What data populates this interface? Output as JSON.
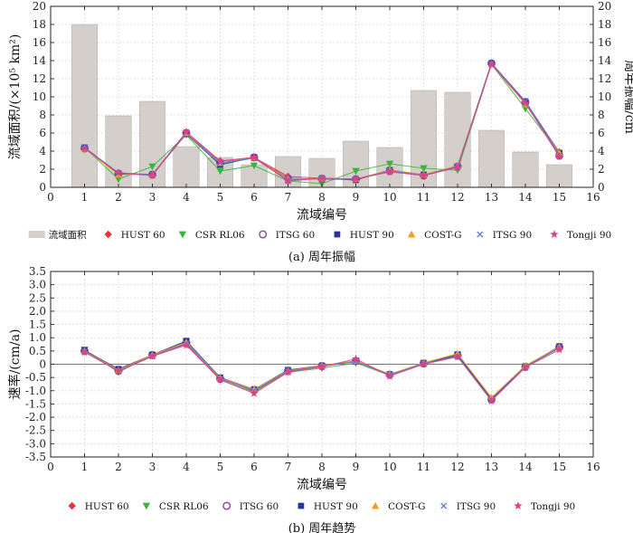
{
  "chart_data": [
    {
      "type": "bar+line",
      "caption": "(a) 周年振幅",
      "xlabel": "流域编号",
      "ylabel_left": "流域面积/(×10⁵ km²)",
      "ylabel_right": "周年振幅/cm",
      "xlim": [
        0,
        16
      ],
      "ylim_left": [
        0,
        20
      ],
      "ylim_right": [
        0,
        20
      ],
      "xticks": [
        "0",
        "1",
        "2",
        "3",
        "4",
        "5",
        "6",
        "7",
        "8",
        "9",
        "10",
        "11",
        "12",
        "13",
        "14",
        "15",
        "16"
      ],
      "yticks_left": [
        "0",
        "2",
        "4",
        "6",
        "8",
        "10",
        "12",
        "14",
        "16",
        "18",
        "20"
      ],
      "yticks_right": [
        "0",
        "2",
        "4",
        "6",
        "8",
        "10",
        "12",
        "14",
        "16",
        "18",
        "20"
      ],
      "grid": true,
      "legend_position": "bottom",
      "categories": [
        1,
        2,
        3,
        4,
        5,
        6,
        7,
        8,
        9,
        10,
        11,
        12,
        13,
        14,
        15
      ],
      "bars": {
        "name": "流域面积",
        "color": "#d4cfcb",
        "values": [
          18.0,
          7.9,
          9.5,
          4.5,
          3.3,
          2.5,
          3.4,
          3.2,
          5.1,
          4.4,
          10.7,
          10.5,
          6.3,
          3.9,
          2.5
        ]
      },
      "series": [
        {
          "name": "HUST 60",
          "color": "#e8323a",
          "marker": "diamond",
          "values": [
            4.3,
            1.6,
            1.4,
            6.1,
            2.9,
            3.3,
            1.2,
            1.0,
            0.9,
            1.9,
            1.3,
            2.3,
            13.7,
            9.3,
            3.9
          ]
        },
        {
          "name": "CSR RL06",
          "color": "#3cb43c",
          "marker": "triangle-down",
          "values": [
            4.4,
            0.9,
            2.3,
            5.8,
            1.8,
            2.4,
            0.7,
            0.4,
            1.8,
            2.6,
            2.1,
            1.9,
            13.6,
            8.7,
            3.8
          ]
        },
        {
          "name": "ITSG 60",
          "color": "#8e4ba6",
          "marker": "circle",
          "values": [
            4.3,
            1.5,
            1.4,
            6.0,
            2.7,
            3.3,
            1.0,
            0.9,
            0.9,
            1.8,
            1.3,
            2.3,
            13.7,
            9.4,
            3.5
          ]
        },
        {
          "name": "HUST 90",
          "color": "#283593",
          "marker": "square",
          "values": [
            4.4,
            1.5,
            1.4,
            5.9,
            2.5,
            3.3,
            0.8,
            1.0,
            0.8,
            1.9,
            1.4,
            2.3,
            13.7,
            9.5,
            3.8
          ]
        },
        {
          "name": "COST-G",
          "color": "#f0a020",
          "marker": "triangle-up",
          "values": [
            4.3,
            1.4,
            1.4,
            6.0,
            2.7,
            3.3,
            0.9,
            1.0,
            0.9,
            1.9,
            1.4,
            2.4,
            13.6,
            9.2,
            3.8
          ]
        },
        {
          "name": "ITSG 90",
          "color": "#5c7bd9",
          "marker": "x",
          "values": [
            4.4,
            1.6,
            1.4,
            6.1,
            2.7,
            3.2,
            0.8,
            1.0,
            0.9,
            1.8,
            1.3,
            2.3,
            13.7,
            9.5,
            3.6
          ]
        },
        {
          "name": "Tongji 90",
          "color": "#e0408a",
          "marker": "star",
          "values": [
            4.3,
            1.6,
            1.3,
            6.1,
            2.9,
            3.3,
            0.7,
            1.0,
            0.9,
            1.7,
            1.3,
            2.2,
            13.6,
            9.3,
            3.4
          ]
        }
      ]
    },
    {
      "type": "line",
      "caption": "(b) 周年趋势",
      "xlabel": "流域编号",
      "ylabel": "速率/(cm/a)",
      "xlim": [
        0,
        16
      ],
      "ylim": [
        -3.5,
        3.5
      ],
      "xticks": [
        "0",
        "1",
        "2",
        "3",
        "4",
        "5",
        "6",
        "7",
        "8",
        "9",
        "10",
        "11",
        "12",
        "13",
        "14",
        "15",
        "16"
      ],
      "yticks": [
        "-3.5",
        "-3.0",
        "-2.5",
        "-2.0",
        "-1.5",
        "-1.0",
        "-0.5",
        "0",
        "0.5",
        "1.0",
        "1.5",
        "2.0",
        "2.5",
        "3.0",
        "3.5"
      ],
      "grid": true,
      "legend_position": "bottom",
      "categories": [
        1,
        2,
        3,
        4,
        5,
        6,
        7,
        8,
        9,
        10,
        11,
        12,
        13,
        14,
        15
      ],
      "series": [
        {
          "name": "HUST 60",
          "color": "#e8323a",
          "marker": "diamond",
          "values": [
            0.5,
            -0.25,
            0.33,
            0.75,
            -0.52,
            -1.02,
            -0.27,
            -0.07,
            0.12,
            -0.4,
            0.02,
            0.33,
            -1.35,
            -0.08,
            0.62
          ]
        },
        {
          "name": "CSR RL06",
          "color": "#3cb43c",
          "marker": "triangle-down",
          "values": [
            0.55,
            -0.3,
            0.35,
            0.85,
            -0.6,
            -1.05,
            -0.3,
            -0.15,
            0.05,
            -0.42,
            0.05,
            0.35,
            -1.3,
            -0.1,
            0.62
          ]
        },
        {
          "name": "ITSG 60",
          "color": "#8e4ba6",
          "marker": "circle",
          "values": [
            0.5,
            -0.25,
            0.35,
            0.8,
            -0.55,
            -0.97,
            -0.25,
            -0.07,
            0.12,
            -0.4,
            0.03,
            0.32,
            -1.33,
            -0.1,
            0.65
          ]
        },
        {
          "name": "HUST 90",
          "color": "#283593",
          "marker": "square",
          "values": [
            0.52,
            -0.18,
            0.35,
            0.88,
            -0.5,
            -0.95,
            -0.22,
            -0.05,
            0.1,
            -0.38,
            0.03,
            0.37,
            -1.32,
            -0.08,
            0.67
          ]
        },
        {
          "name": "COST-G",
          "color": "#f0a020",
          "marker": "triangle-up",
          "values": [
            0.5,
            -0.22,
            0.35,
            0.82,
            -0.52,
            -0.95,
            -0.25,
            -0.05,
            0.12,
            -0.38,
            0.05,
            0.4,
            -1.25,
            -0.05,
            0.65
          ]
        },
        {
          "name": "ITSG 90",
          "color": "#5c7bd9",
          "marker": "x",
          "values": [
            0.48,
            -0.27,
            0.3,
            0.78,
            -0.55,
            -1.0,
            -0.27,
            -0.08,
            0.1,
            -0.4,
            0.02,
            0.3,
            -1.35,
            -0.1,
            0.62
          ]
        },
        {
          "name": "Tongji 90",
          "color": "#e0408a",
          "marker": "star",
          "values": [
            0.45,
            -0.25,
            0.3,
            0.72,
            -0.58,
            -1.1,
            -0.3,
            -0.1,
            0.2,
            -0.45,
            0.0,
            0.28,
            -1.38,
            -0.12,
            0.55
          ]
        }
      ]
    }
  ]
}
